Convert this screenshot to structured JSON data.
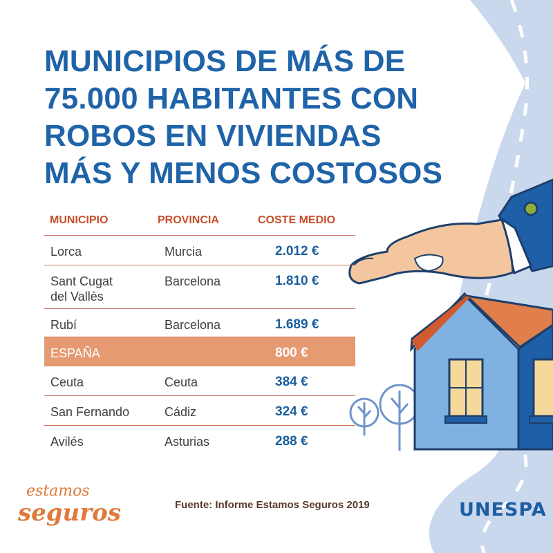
{
  "title": {
    "line1": "MUNICIPIOS DE MÁS DE",
    "line2": "75.000 HABITANTES CON",
    "line3": "ROBOS EN VIVIENDAS",
    "line4": "MÁS Y MENOS COSTOSOS"
  },
  "table": {
    "headers": {
      "municipio": "MUNICIPIO",
      "provincia": "PROVINCIA",
      "coste": "COSTE MEDIO"
    },
    "rows": [
      {
        "municipio": "Lorca",
        "municipio2": "",
        "provincia": "Murcia",
        "coste": "2.012 €"
      },
      {
        "municipio": "Sant Cugat",
        "municipio2": "del Vallès",
        "provincia": "Barcelona",
        "coste": "1.810 €"
      },
      {
        "municipio": "Rubí",
        "municipio2": "",
        "provincia": "Barcelona",
        "coste": "1.689 €"
      },
      {
        "municipio": "ESPAÑA",
        "municipio2": "",
        "provincia": "",
        "coste": "800 €",
        "highlight": true
      },
      {
        "municipio": "Ceuta",
        "municipio2": "",
        "provincia": "Ceuta",
        "coste": "384 €"
      },
      {
        "municipio": "San Fernando",
        "municipio2": "",
        "provincia": "Cádiz",
        "coste": "324 €"
      },
      {
        "municipio": "Avilés",
        "municipio2": "",
        "provincia": "Asturias",
        "coste": "288 €"
      }
    ]
  },
  "footer": {
    "source": "Fuente: Informe Estamos Seguros 2019",
    "logo_left_line1": "estamos",
    "logo_left_line2": "seguros",
    "logo_right": "UNESPA"
  },
  "colors": {
    "title": "#1f63a8",
    "header": "#c74e2c",
    "highlight": "#e59a72",
    "road": "#c9d8ec",
    "house_wall": "#7fb2e0",
    "roof": "#e07e4c",
    "sleeve": "#1f5fa8"
  }
}
